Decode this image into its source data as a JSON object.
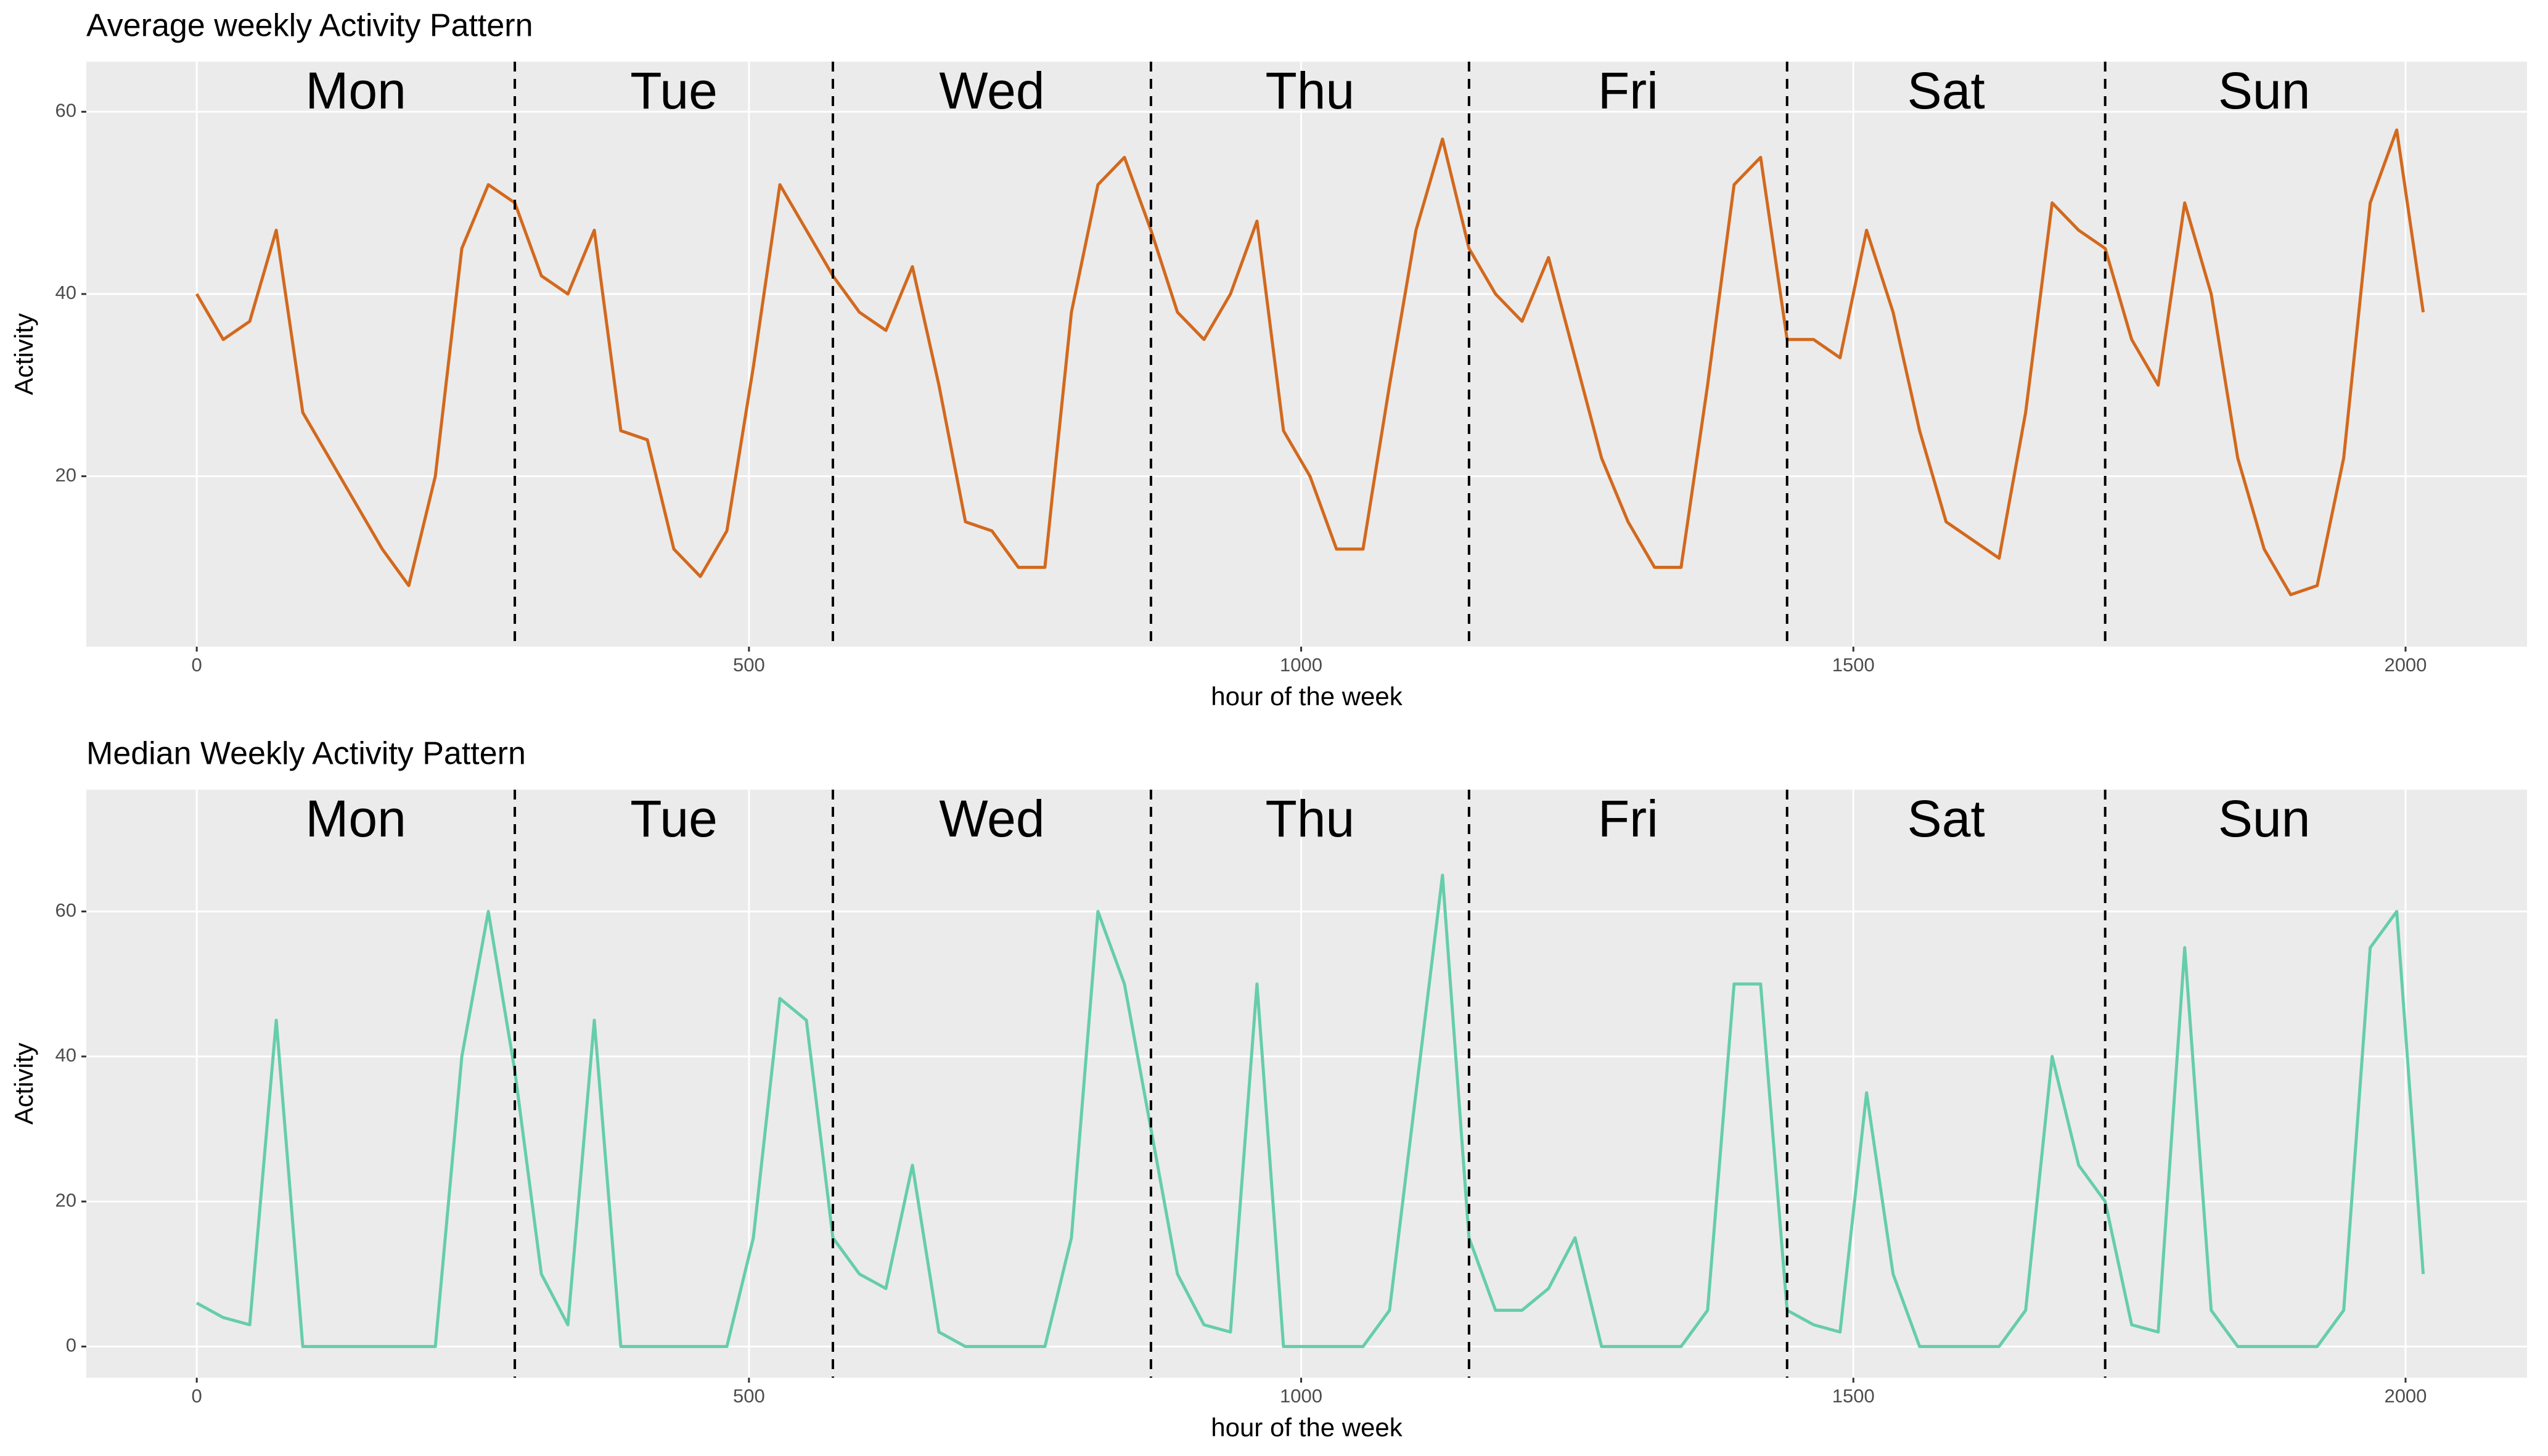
{
  "chart_data": [
    {
      "type": "line",
      "title": "Average weekly Activity Pattern",
      "xlabel": "hour of the week",
      "ylabel": "Activity",
      "xlim": [
        -100,
        2110
      ],
      "xticks": [
        0,
        500,
        1000,
        1500,
        2000
      ],
      "ylim": [
        1.3,
        65.5
      ],
      "yticks": [
        20,
        40,
        60
      ],
      "grid": true,
      "color": "#d2691e",
      "vlines": [
        288,
        576,
        864,
        1152,
        1440,
        1728
      ],
      "annotations": [
        {
          "text": "Mon",
          "x": 144
        },
        {
          "text": "Tue",
          "x": 432
        },
        {
          "text": "Wed",
          "x": 720
        },
        {
          "text": "Thu",
          "x": 1008
        },
        {
          "text": "Fri",
          "x": 1296
        },
        {
          "text": "Sat",
          "x": 1584
        },
        {
          "text": "Sun",
          "x": 1872
        }
      ],
      "x": [
        0,
        24,
        48,
        72,
        96,
        120,
        144,
        168,
        192,
        216,
        240,
        264,
        288,
        312,
        336,
        360,
        384,
        408,
        432,
        456,
        480,
        504,
        528,
        552,
        576,
        600,
        624,
        648,
        672,
        696,
        720,
        744,
        768,
        792,
        816,
        840,
        864,
        888,
        912,
        936,
        960,
        984,
        1008,
        1032,
        1056,
        1080,
        1104,
        1128,
        1152,
        1176,
        1200,
        1224,
        1248,
        1272,
        1296,
        1320,
        1344,
        1368,
        1392,
        1416,
        1440,
        1464,
        1488,
        1512,
        1536,
        1560,
        1584,
        1608,
        1632,
        1656,
        1680,
        1704,
        1728,
        1752,
        1776,
        1800,
        1824,
        1848,
        1872,
        1896,
        1920,
        1944,
        1968,
        1992,
        2016
      ],
      "values": [
        40,
        35,
        37,
        47,
        27,
        22,
        17,
        12,
        8,
        20,
        45,
        52,
        50,
        42,
        40,
        47,
        25,
        24,
        12,
        9,
        14,
        32,
        52,
        47,
        42,
        38,
        36,
        43,
        30,
        15,
        14,
        10,
        10,
        38,
        52,
        55,
        47,
        38,
        35,
        40,
        48,
        25,
        20,
        12,
        12,
        30,
        47,
        57,
        45,
        40,
        37,
        44,
        33,
        22,
        15,
        10,
        10,
        30,
        52,
        55,
        35,
        35,
        33,
        47,
        38,
        25,
        15,
        13,
        11,
        27,
        50,
        47,
        45,
        35,
        30,
        50,
        40,
        22,
        12,
        7,
        8,
        22,
        50,
        58,
        38
      ]
    },
    {
      "type": "line",
      "title": "Median Weekly Activity Pattern",
      "xlabel": "hour of the week",
      "ylabel": "Activity",
      "xlim": [
        -100,
        2110
      ],
      "xticks": [
        0,
        500,
        1000,
        1500,
        2000
      ],
      "ylim": [
        -4.3,
        76.8
      ],
      "yticks": [
        0,
        20,
        40,
        60
      ],
      "grid": true,
      "color": "#66cdaa",
      "vlines": [
        288,
        576,
        864,
        1152,
        1440,
        1728
      ],
      "annotations": [
        {
          "text": "Mon",
          "x": 144
        },
        {
          "text": "Tue",
          "x": 432
        },
        {
          "text": "Wed",
          "x": 720
        },
        {
          "text": "Thu",
          "x": 1008
        },
        {
          "text": "Fri",
          "x": 1296
        },
        {
          "text": "Sat",
          "x": 1584
        },
        {
          "text": "Sun",
          "x": 1872
        }
      ],
      "x": [
        0,
        24,
        48,
        72,
        96,
        120,
        144,
        168,
        192,
        216,
        240,
        264,
        288,
        312,
        336,
        360,
        384,
        408,
        432,
        456,
        480,
        504,
        528,
        552,
        576,
        600,
        624,
        648,
        672,
        696,
        720,
        744,
        768,
        792,
        816,
        840,
        864,
        888,
        912,
        936,
        960,
        984,
        1008,
        1032,
        1056,
        1080,
        1104,
        1128,
        1152,
        1176,
        1200,
        1224,
        1248,
        1272,
        1296,
        1320,
        1344,
        1368,
        1392,
        1416,
        1440,
        1464,
        1488,
        1512,
        1536,
        1560,
        1584,
        1608,
        1632,
        1656,
        1680,
        1704,
        1728,
        1752,
        1776,
        1800,
        1824,
        1848,
        1872,
        1896,
        1920,
        1944,
        1968,
        1992,
        2016
      ],
      "values": [
        6,
        4,
        3,
        45,
        0,
        0,
        0,
        0,
        0,
        0,
        40,
        60,
        38,
        10,
        3,
        45,
        0,
        0,
        0,
        0,
        0,
        15,
        48,
        45,
        15,
        10,
        8,
        25,
        2,
        0,
        0,
        0,
        0,
        15,
        60,
        50,
        30,
        10,
        3,
        2,
        50,
        0,
        0,
        0,
        0,
        5,
        35,
        65,
        15,
        5,
        5,
        8,
        15,
        0,
        0,
        0,
        0,
        5,
        50,
        50,
        5,
        3,
        2,
        35,
        10,
        0,
        0,
        0,
        0,
        5,
        40,
        25,
        20,
        3,
        2,
        55,
        5,
        0,
        0,
        0,
        0,
        5,
        55,
        60,
        10
      ]
    }
  ]
}
